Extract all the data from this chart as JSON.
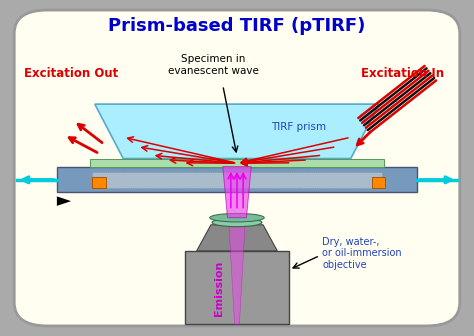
{
  "title": "Prism-based TIRF (pTIRF)",
  "title_color": "#0000CC",
  "title_fontsize": 13,
  "bg_color": "#FFFEF0",
  "border_color": "#999999",
  "fig_bg": "#AAAAAA",
  "label_excitation_out": "Excitation Out",
  "label_excitation_in": "Excitation In",
  "label_specimen": "Specimen in\nevanescent wave",
  "label_tirf_prism": "TIRF prism",
  "label_emission": "Emission",
  "label_objective": "Dry, water-,\nor oil-immersion\nobjective",
  "red_color": "#DD0000",
  "cyan_color": "#00CCDD",
  "blue_label_color": "#2244BB",
  "magenta_color": "#CC00CC",
  "prism_color": "#AAEEFF",
  "prism_edge": "#55AACC",
  "slide_color": "#AADDAA",
  "slide_edge": "#559955",
  "stage_color": "#7799BB",
  "stage_edge": "#445577",
  "stage_inner_color": "#AABBCC",
  "orange_color": "#FF8800",
  "obj_body_color": "#999999",
  "obj_edge_color": "#444444",
  "obj_lens_color": "#88CCAA",
  "obj_lens_edge": "#336644"
}
